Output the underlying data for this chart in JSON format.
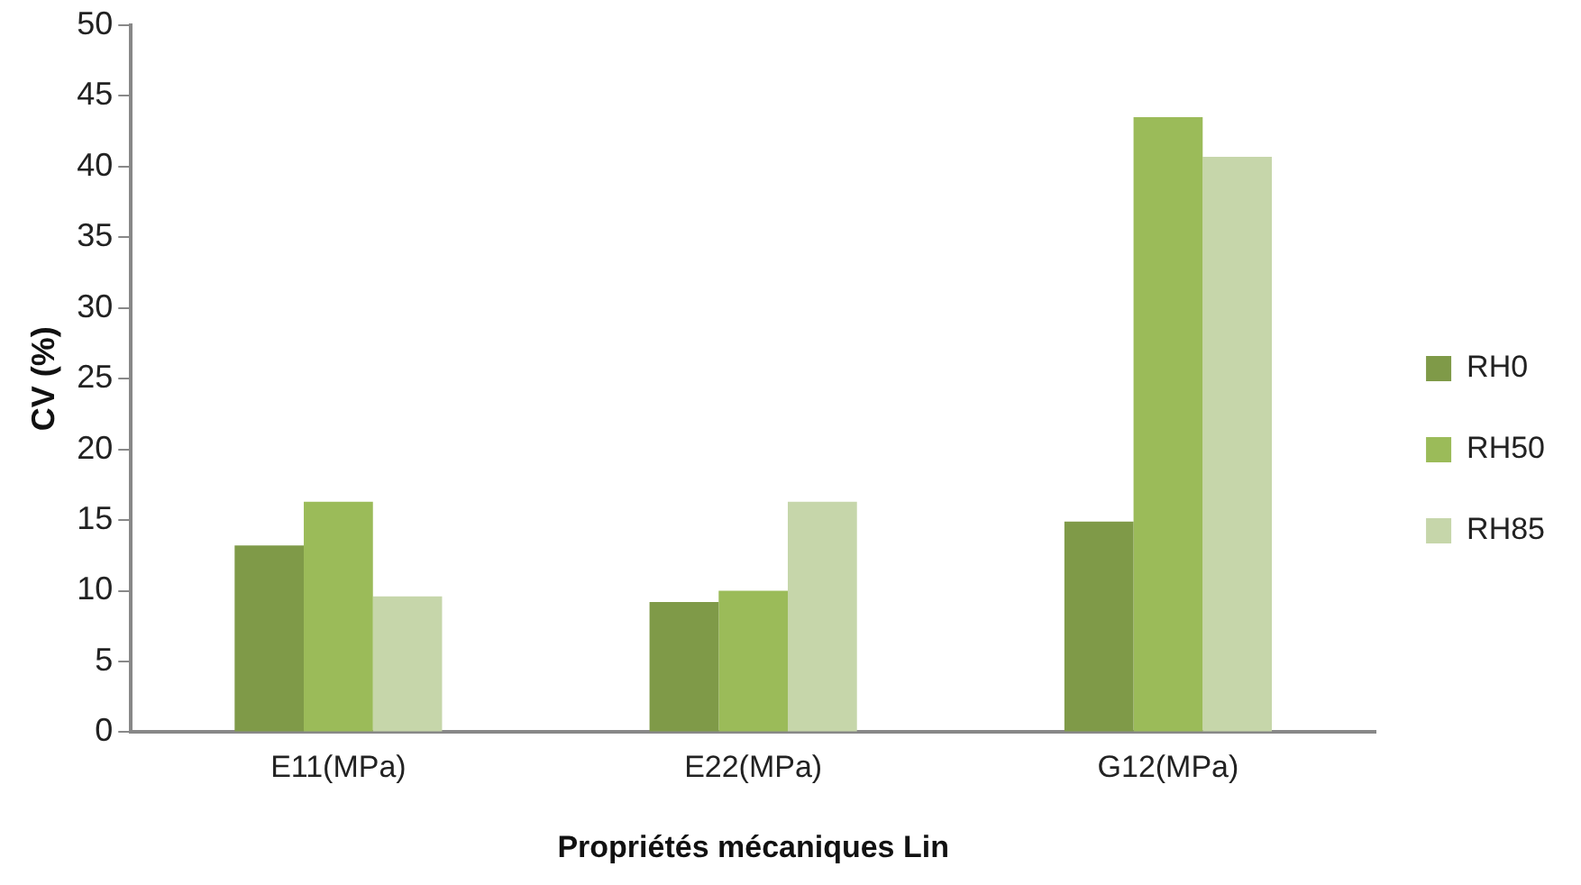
{
  "chart_data": {
    "type": "bar",
    "xlabel": "Propriétés mécaniques Lin",
    "ylabel": "CV (%)",
    "categories": [
      "E11(MPa)",
      "E22(MPa)",
      "G12(MPa)"
    ],
    "series": [
      {
        "name": "RH0",
        "color": "#7f9a48",
        "values": [
          13.2,
          9.2,
          14.9
        ]
      },
      {
        "name": "RH50",
        "color": "#9bbb59",
        "values": [
          16.3,
          10.0,
          43.5
        ]
      },
      {
        "name": "RH85",
        "color": "#c6d6aa",
        "values": [
          9.6,
          16.3,
          40.7
        ]
      }
    ],
    "ylim": [
      0,
      50
    ],
    "yticks": [
      0,
      5,
      10,
      15,
      20,
      25,
      30,
      35,
      40,
      45,
      50
    ],
    "grid": false,
    "legend": "right"
  }
}
